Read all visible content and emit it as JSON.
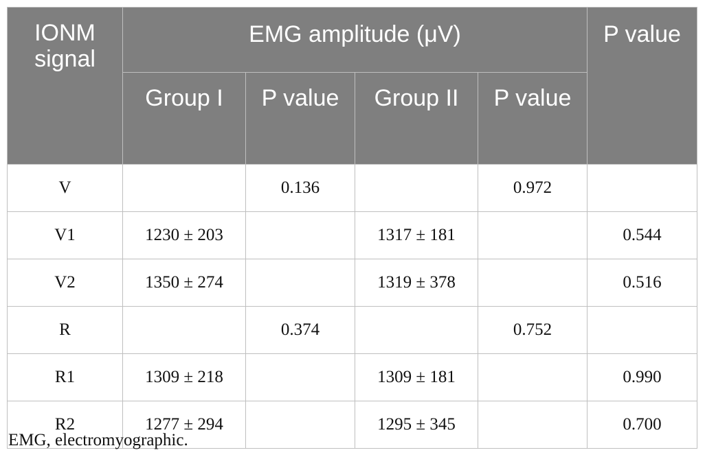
{
  "table": {
    "header": {
      "ionm_signal": "IONM signal",
      "emg_amplitude": "EMG amplitude (μV)",
      "p_value_outer": "P value",
      "group1": "Group I",
      "p_value_1": "P value",
      "group2": "Group II",
      "p_value_2": "P value"
    },
    "rows": [
      {
        "signal": "V",
        "g1": "",
        "p1": "0.136",
        "g2": "",
        "p2": "0.972",
        "p": ""
      },
      {
        "signal": "V1",
        "g1": "1230 ± 203",
        "p1": "",
        "g2": "1317 ± 181",
        "p2": "",
        "p": "0.544"
      },
      {
        "signal": "V2",
        "g1": "1350 ± 274",
        "p1": "",
        "g2": "1319 ± 378",
        "p2": "",
        "p": "0.516"
      },
      {
        "signal": "R",
        "g1": "",
        "p1": "0.374",
        "g2": "",
        "p2": "0.752",
        "p": ""
      },
      {
        "signal": "R1",
        "g1": "1309 ± 218",
        "p1": "",
        "g2": "1309 ± 181",
        "p2": "",
        "p": "0.990"
      },
      {
        "signal": "R2",
        "g1": "1277 ± 294",
        "p1": "",
        "g2": "1295 ± 345",
        "p2": "",
        "p": "0.700"
      }
    ]
  },
  "footnote": "EMG, electromyographic."
}
